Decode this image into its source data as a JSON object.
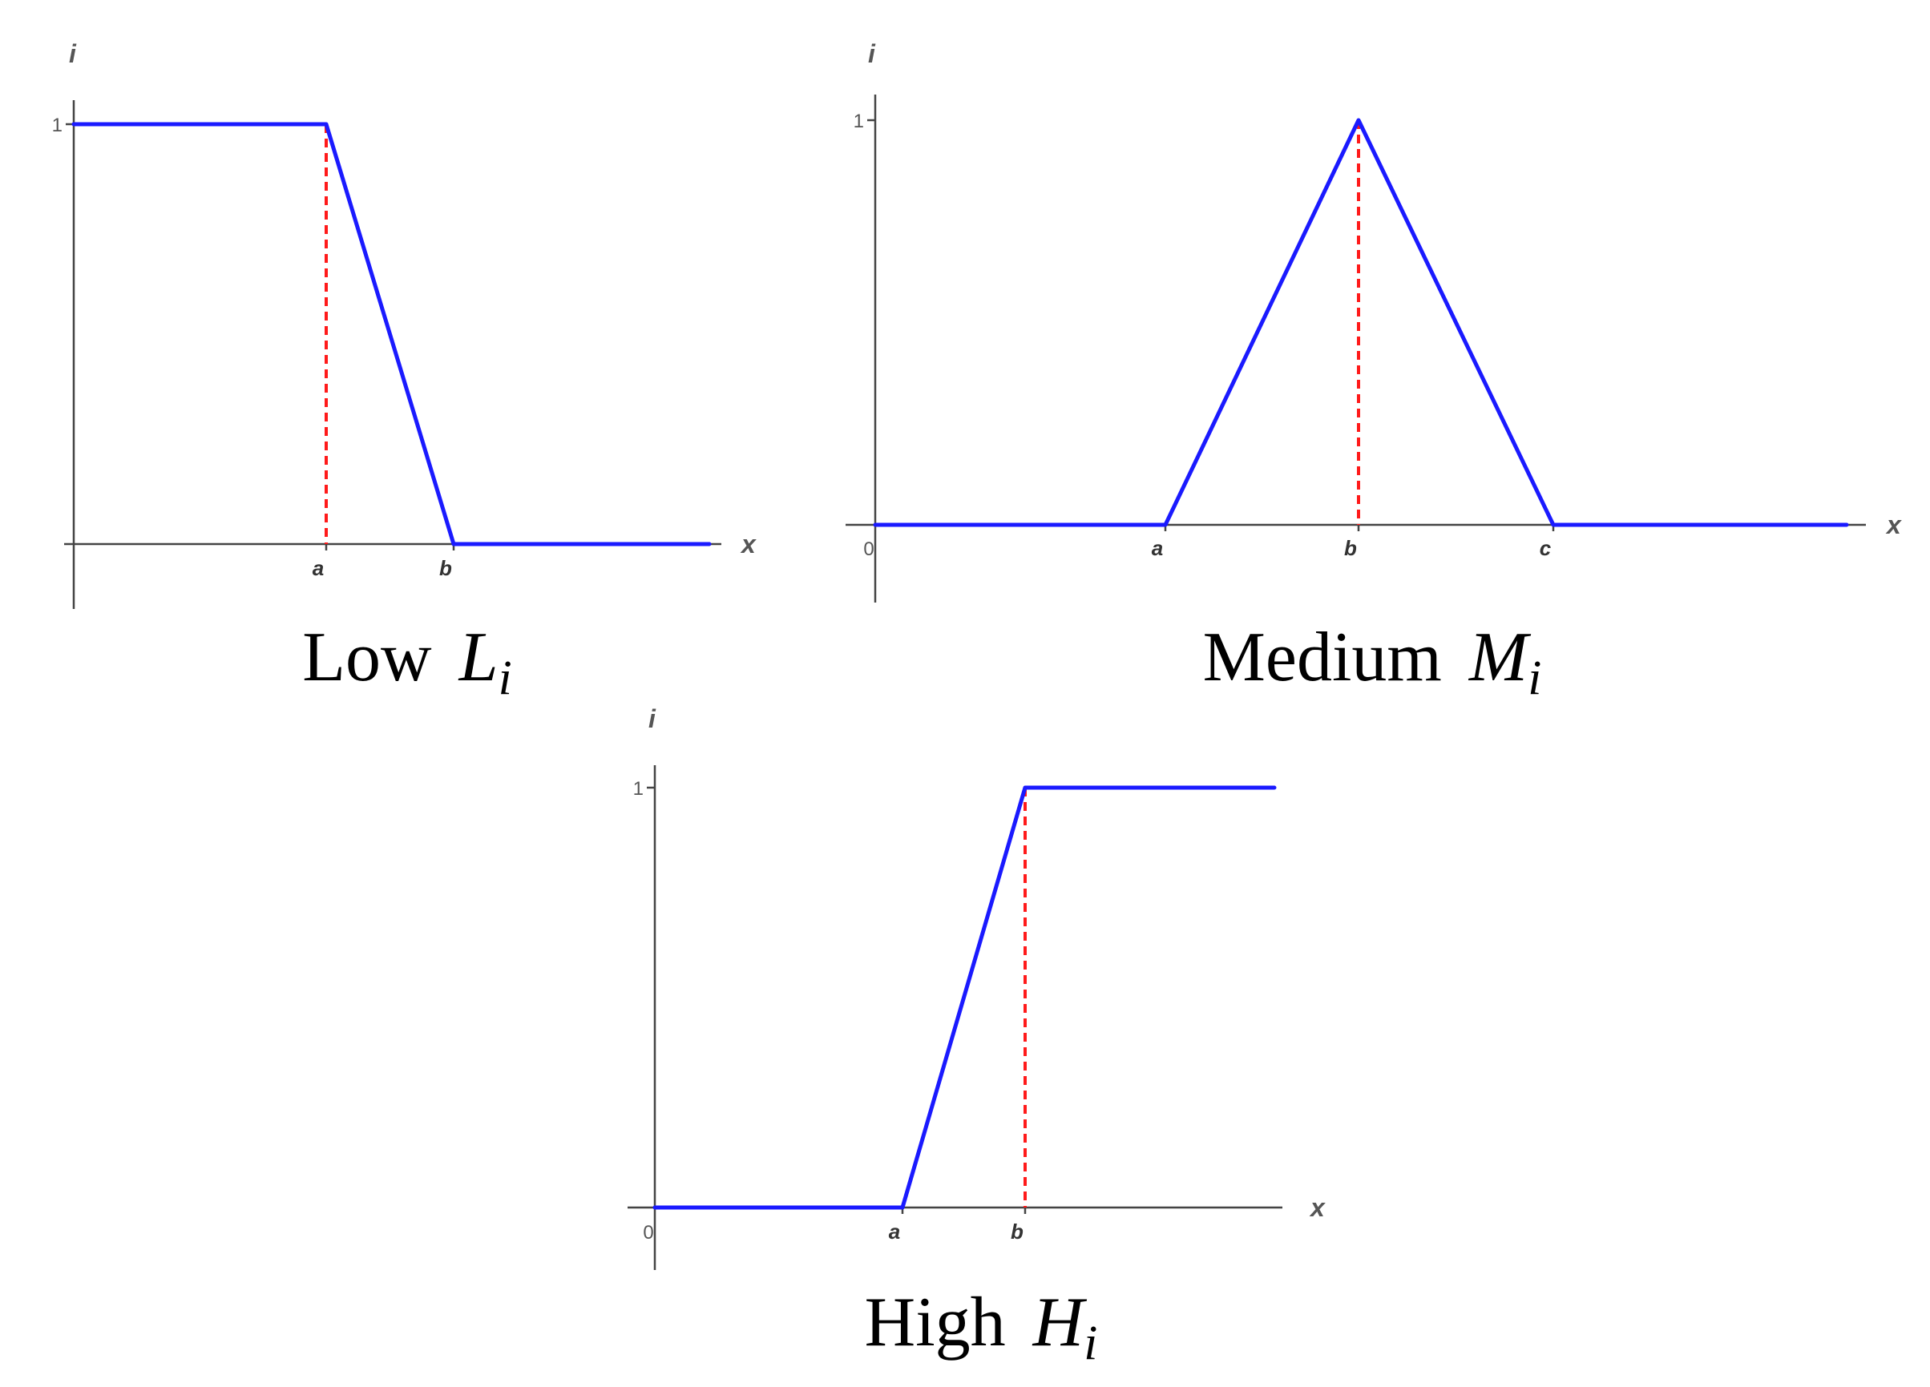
{
  "chart_data": [
    {
      "type": "line",
      "caption_word": "Low",
      "caption_symbol": "L",
      "caption_sub": "i",
      "ylabel": "i",
      "xlabel": "x",
      "y_ticks": [
        "1"
      ],
      "x_ticks": [
        "a",
        "b"
      ],
      "series": [
        {
          "x": [
            "start",
            "a",
            "b",
            "end"
          ],
          "y": [
            1,
            1,
            0,
            0
          ],
          "color": "#1a1aff"
        }
      ],
      "guides": [
        {
          "at": "a",
          "y": 1,
          "color": "#ff1a1a"
        }
      ]
    },
    {
      "type": "line",
      "caption_word": "Medium",
      "caption_symbol": "M",
      "caption_sub": "i",
      "ylabel": "i",
      "xlabel": "x",
      "y_ticks": [
        "1"
      ],
      "x_ticks": [
        "0",
        "a",
        "b",
        "c"
      ],
      "series": [
        {
          "x": [
            "0",
            "a",
            "b",
            "c",
            "end"
          ],
          "y": [
            0,
            0,
            1,
            0,
            0
          ],
          "color": "#1a1aff"
        }
      ],
      "guides": [
        {
          "at": "b",
          "y": 1,
          "color": "#ff1a1a"
        }
      ]
    },
    {
      "type": "line",
      "caption_word": "High",
      "caption_symbol": "H",
      "caption_sub": "i",
      "ylabel": "i",
      "xlabel": "x",
      "y_ticks": [
        "1"
      ],
      "x_ticks": [
        "0",
        "a",
        "b"
      ],
      "series": [
        {
          "x": [
            "0",
            "a",
            "b",
            "end"
          ],
          "y": [
            0,
            0,
            1,
            1
          ],
          "color": "#1a1aff"
        }
      ],
      "guides": [
        {
          "at": "b",
          "y": 1,
          "color": "#ff1a1a"
        }
      ]
    }
  ]
}
